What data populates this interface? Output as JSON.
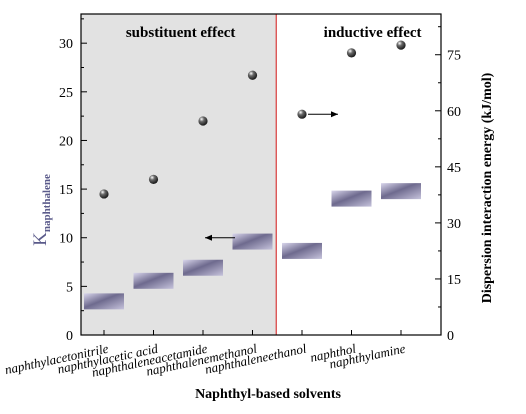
{
  "chart_data": {
    "type": "scatter",
    "xlabel": "Naphthyl-based solvents",
    "ylabel_left_main": "K",
    "ylabel_left_sub": "naphthalene",
    "ylabel_right": "Dispersion interaction energy (kJ/mol)",
    "categories": [
      "naphthylacetonitrile",
      "naphthylacetic acid",
      "naphthaleneacetamide",
      "naphthalenemethanol",
      "naphthaleneethanol",
      "naphthol",
      "naphthylamine"
    ],
    "left_axis": {
      "ylim": [
        0,
        33
      ],
      "ticks": [
        0,
        5,
        10,
        15,
        20,
        25,
        30
      ]
    },
    "right_axis": {
      "ylim": [
        0,
        85.9
      ],
      "ticks": [
        0,
        15,
        30,
        45,
        60,
        75
      ]
    },
    "series": [
      {
        "axis": "left",
        "marker": "sphere",
        "values": [
          14.5,
          16.0,
          22.0,
          26.7,
          22.7,
          29.0,
          29.8
        ]
      },
      {
        "axis": "right",
        "marker": "bar-segment",
        "values": [
          9,
          14.5,
          18,
          25,
          22.5,
          36.5,
          38.5
        ]
      }
    ],
    "regions": [
      {
        "label": "substituent effect",
        "from_category": 0,
        "to_category": 3,
        "shaded": true,
        "color": "#e2e2e2"
      },
      {
        "label": "inductive effect",
        "from_category": 4,
        "to_category": 6,
        "shaded": false
      }
    ],
    "divider_color": "#d83a3a",
    "annotations": [
      {
        "type": "arrow",
        "direction": "left",
        "category": 2,
        "axis": "left",
        "value": 10.0
      },
      {
        "type": "arrow",
        "direction": "right",
        "category": 4,
        "axis": "left",
        "value": 22.7
      }
    ],
    "grid": false,
    "legend": "none"
  }
}
